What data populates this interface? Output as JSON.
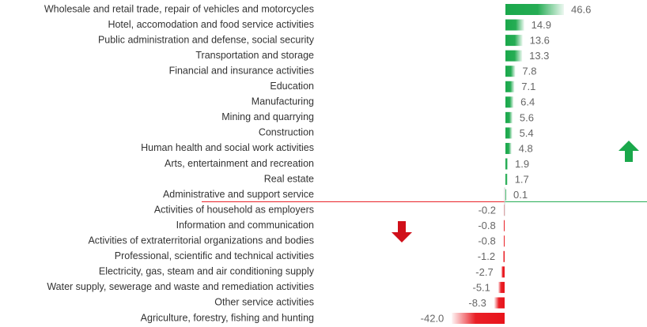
{
  "chart_data": {
    "type": "bar",
    "orientation": "horizontal",
    "categories": [
      "Wholesale and retail trade, repair of vehicles and motorcycles",
      "Hotel, accomodation and food service activities",
      "Public administration and defense, social security",
      "Transportation and storage",
      "Financial and insurance activities",
      "Education",
      "Manufacturing",
      "Mining and quarrying",
      "Construction",
      "Human health and social work activities",
      "Arts, entertainment and recreation",
      "Real estate",
      "Administrative and support service",
      "Activities of household as employers",
      "Information and communication",
      "Activities of extraterritorial organizations and bodies",
      "Professional, scientific and technical activities",
      "Electricity, gas, steam and air conditioning supply",
      "Water supply, sewerage and waste and remediation activities",
      "Other service activities",
      "Agriculture, forestry, fishing and hunting"
    ],
    "values": [
      46.6,
      14.9,
      13.6,
      13.3,
      7.8,
      7.1,
      6.4,
      5.6,
      5.4,
      4.8,
      1.9,
      1.7,
      0.1,
      -0.2,
      -0.8,
      -0.8,
      -1.2,
      -2.7,
      -5.1,
      -8.3,
      -42
    ],
    "value_labels": [
      "46.6",
      "14.9",
      "13.6",
      "13.3",
      "7.8",
      "7.1",
      "6.4",
      "5.6",
      "5.4",
      "4.8",
      "1.9",
      "1.7",
      "0.1",
      "-0.2",
      "-0.8",
      "-0.8",
      "-1.2",
      "-2.7",
      "-5.1",
      "-8.3",
      "-42.0"
    ],
    "positive_color": "#1aa84b",
    "negative_color": "#e8141b"
  }
}
